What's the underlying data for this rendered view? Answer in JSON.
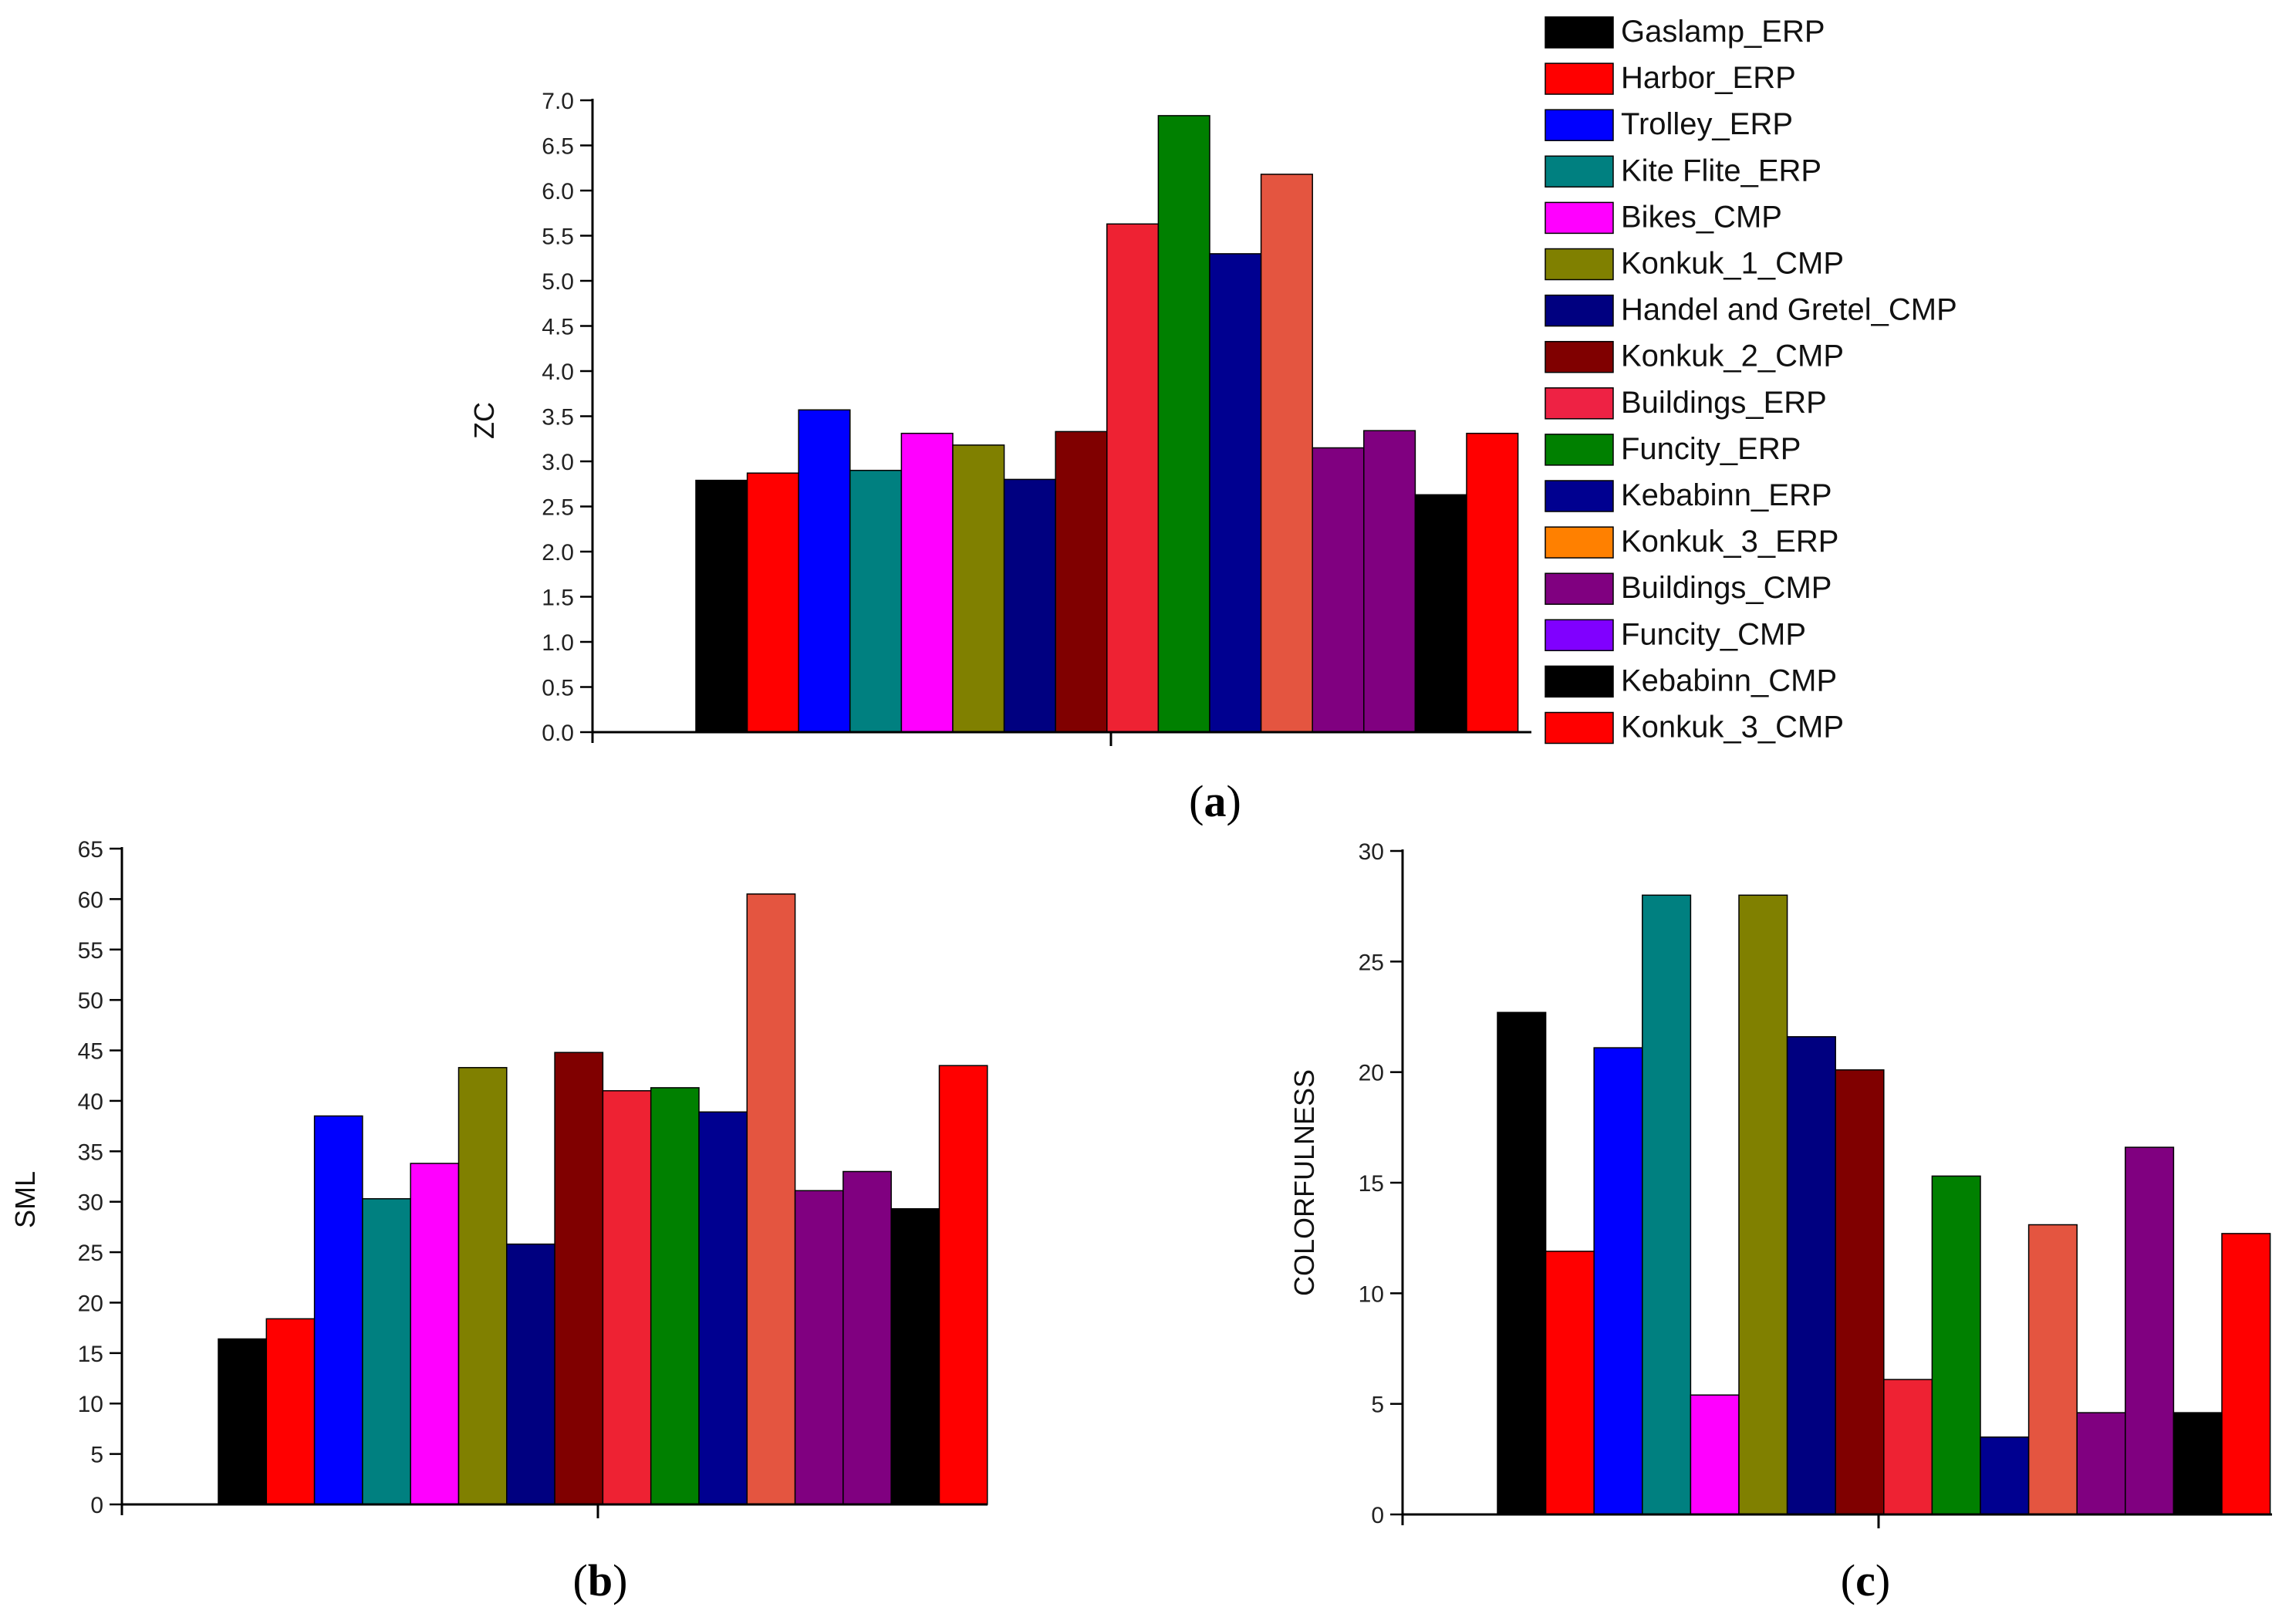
{
  "legend": {
    "entries": [
      {
        "label": "Gaslamp_ERP",
        "color": "#000000"
      },
      {
        "label": "Harbor_ERP",
        "color": "#ff0000"
      },
      {
        "label": "Trolley_ERP",
        "color": "#0000ff"
      },
      {
        "label": "Kite Flite_ERP",
        "color": "#008080"
      },
      {
        "label": "Bikes_CMP",
        "color": "#ff00ff"
      },
      {
        "label": "Konkuk_1_CMP",
        "color": "#808000"
      },
      {
        "label": "Handel and Gretel_CMP",
        "color": "#000080"
      },
      {
        "label": "Konkuk_2_CMP",
        "color": "#800000"
      },
      {
        "label": "Buildings_ERP",
        "color": "#ee2244"
      },
      {
        "label": "Funcity_ERP",
        "color": "#008000"
      },
      {
        "label": "Kebabinn_ERP",
        "color": "#000090"
      },
      {
        "label": "Konkuk_3_ERP",
        "color": "#ff8000"
      },
      {
        "label": "Buildings_CMP",
        "color": "#800080"
      },
      {
        "label": "Funcity_CMP",
        "color": "#8000ff"
      },
      {
        "label": "Kebabinn_CMP",
        "color": "#000000"
      },
      {
        "label": "Konkuk_3_CMP",
        "color": "#ff0000"
      }
    ]
  },
  "chart_data": [
    {
      "type": "bar",
      "panel": "a",
      "caption_letter": "a",
      "title": "",
      "xlabel": "",
      "ylabel": "ZC",
      "ylim": [
        0,
        7.0
      ],
      "yticks": [
        "0.0",
        "0.5",
        "1.0",
        "1.5",
        "2.0",
        "2.5",
        "3.0",
        "3.5",
        "4.0",
        "4.5",
        "5.0",
        "5.5",
        "6.0",
        "6.5",
        "7.0"
      ],
      "categories": [
        "Gaslamp_ERP",
        "Harbor_ERP",
        "Trolley_ERP",
        "Kite Flite_ERP",
        "Bikes_CMP",
        "Konkuk_1_CMP",
        "Handel and Gretel_CMP",
        "Konkuk_2_CMP",
        "Buildings_ERP",
        "Funcity_ERP",
        "Kebabinn_ERP",
        "Konkuk_3_ERP",
        "Buildings_CMP",
        "Funcity_CMP",
        "Kebabinn_CMP",
        "Konkuk_3_CMP"
      ],
      "bar_colors": [
        "#000000",
        "#ff0000",
        "#0000ff",
        "#008080",
        "#ff00ff",
        "#808000",
        "#000080",
        "#800000",
        "#ee2233",
        "#008000",
        "#000090",
        "#e45540",
        "#800080",
        "#800080",
        "#000000",
        "#ff0000"
      ],
      "values": [
        2.79,
        2.87,
        3.57,
        2.9,
        3.31,
        3.18,
        2.8,
        3.33,
        5.63,
        6.83,
        5.3,
        6.18,
        3.15,
        3.34,
        2.63,
        3.31
      ],
      "grid": false
    },
    {
      "type": "bar",
      "panel": "b",
      "caption_letter": "b",
      "title": "",
      "xlabel": "",
      "ylabel": "SML",
      "ylim": [
        0,
        65
      ],
      "yticks": [
        "0",
        "5",
        "10",
        "15",
        "20",
        "25",
        "30",
        "35",
        "40",
        "45",
        "50",
        "55",
        "60",
        "65"
      ],
      "categories": [
        "Gaslamp_ERP",
        "Harbor_ERP",
        "Trolley_ERP",
        "Kite Flite_ERP",
        "Bikes_CMP",
        "Konkuk_1_CMP",
        "Handel and Gretel_CMP",
        "Konkuk_2_CMP",
        "Buildings_ERP",
        "Funcity_ERP",
        "Kebabinn_ERP",
        "Konkuk_3_ERP",
        "Buildings_CMP",
        "Funcity_CMP",
        "Kebabinn_CMP",
        "Konkuk_3_CMP"
      ],
      "bar_colors": [
        "#000000",
        "#ff0000",
        "#0000ff",
        "#008080",
        "#ff00ff",
        "#808000",
        "#000080",
        "#800000",
        "#ee2233",
        "#008000",
        "#000090",
        "#e45540",
        "#800080",
        "#800080",
        "#000000",
        "#ff0000"
      ],
      "values": [
        16.4,
        18.4,
        38.5,
        30.3,
        33.8,
        43.3,
        25.8,
        44.8,
        41.0,
        41.3,
        38.9,
        60.5,
        31.1,
        33.0,
        29.3,
        43.5
      ],
      "grid": false
    },
    {
      "type": "bar",
      "panel": "c",
      "caption_letter": "c",
      "title": "",
      "xlabel": "",
      "ylabel": "COLORFULNESS",
      "ylim": [
        0,
        30
      ],
      "yticks": [
        "0",
        "5",
        "10",
        "15",
        "20",
        "25",
        "30"
      ],
      "categories": [
        "Gaslamp_ERP",
        "Harbor_ERP",
        "Trolley_ERP",
        "Kite Flite_ERP",
        "Bikes_CMP",
        "Konkuk_1_CMP",
        "Handel and Gretel_CMP",
        "Konkuk_2_CMP",
        "Buildings_ERP",
        "Funcity_ERP",
        "Kebabinn_ERP",
        "Konkuk_3_ERP",
        "Buildings_CMP",
        "Funcity_CMP",
        "Kebabinn_CMP",
        "Konkuk_3_CMP"
      ],
      "bar_colors": [
        "#000000",
        "#ff0000",
        "#0000ff",
        "#008080",
        "#ff00ff",
        "#808000",
        "#000080",
        "#800000",
        "#ee2233",
        "#008000",
        "#000090",
        "#e45540",
        "#800080",
        "#800080",
        "#000000",
        "#ff0000"
      ],
      "values": [
        22.7,
        11.9,
        21.1,
        28.0,
        5.4,
        28.0,
        21.6,
        20.1,
        6.1,
        15.3,
        3.5,
        13.1,
        4.6,
        16.6,
        4.6,
        12.7
      ],
      "grid": false
    }
  ]
}
